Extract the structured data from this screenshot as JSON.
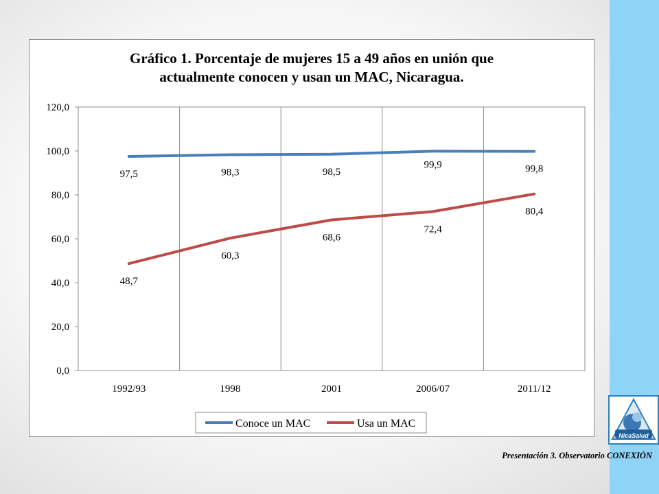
{
  "chart_data": {
    "type": "line",
    "title_lines": [
      "Gráfico 1. Porcentaje de mujeres 15 a 49 años en unión que",
      "actualmente conocen y usan un MAC, Nicaragua."
    ],
    "categories": [
      "1992/93",
      "1998",
      "2001",
      "2006/07",
      "2011/12"
    ],
    "series": [
      {
        "name": "Conoce un MAC",
        "color": "#4a7ebb",
        "values": [
          97.5,
          98.3,
          98.5,
          99.9,
          99.8
        ],
        "labels": [
          "97,5",
          "98,3",
          "98,5",
          "99,9",
          "99,8"
        ]
      },
      {
        "name": "Usa un MAC",
        "color": "#be4b48",
        "values": [
          48.7,
          60.3,
          68.6,
          72.4,
          80.4
        ],
        "labels": [
          "48,7",
          "60,3",
          "68,6",
          "72,4",
          "80,4"
        ]
      }
    ],
    "y_ticks": [
      "0,0",
      "20,0",
      "40,0",
      "60,0",
      "80,0",
      "100,0",
      "120,0"
    ],
    "ylim": [
      0,
      120
    ],
    "grid": "vertical",
    "legend": "bottom"
  },
  "logo": {
    "brand": "NicaSalud"
  },
  "footer": {
    "prefix": "Presentación 3. Observatorio ",
    "emphasis": "CONEXIÓN"
  }
}
